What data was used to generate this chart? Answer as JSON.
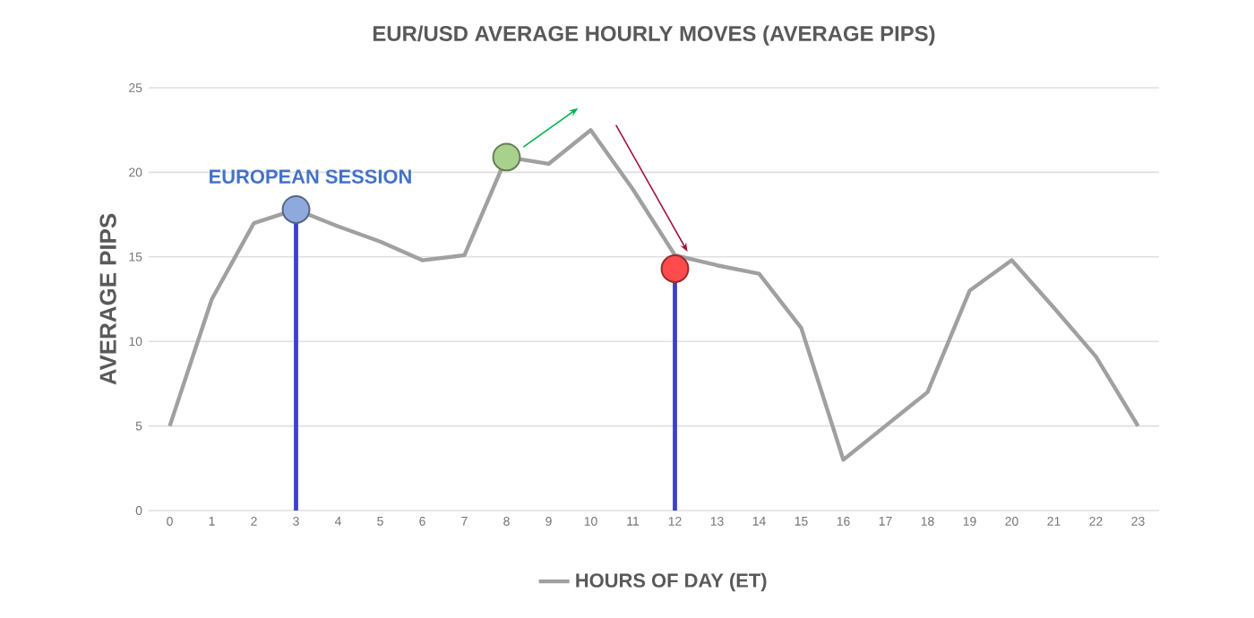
{
  "chart_data": {
    "type": "line",
    "title": "EUR/USD AVERAGE HOURLY MOVES (AVERAGE PIPS)",
    "ylabel": "AVERAGE PIPS",
    "categories": [
      "0",
      "1",
      "2",
      "3",
      "4",
      "5",
      "6",
      "7",
      "8",
      "9",
      "10",
      "11",
      "12",
      "13",
      "14",
      "15",
      "16",
      "17",
      "18",
      "19",
      "20",
      "21",
      "22",
      "23"
    ],
    "series": [
      {
        "name": "HOURS OF DAY (ET)",
        "color": "#a0a0a0",
        "values": [
          5,
          12.5,
          17,
          17.8,
          16.8,
          15.9,
          14.8,
          15.1,
          20.9,
          20.5,
          22.5,
          19,
          15.1,
          14.5,
          14,
          10.8,
          3,
          5,
          7,
          13,
          14.8,
          12,
          9.1,
          5
        ]
      },
      {
        "type": "lollipop",
        "color": "#3a3fd0",
        "colors": [
          null,
          null,
          null,
          "#8ea9db",
          null,
          null,
          null,
          null,
          null,
          null,
          null,
          null,
          "#ff4b4b",
          null,
          null,
          null,
          null,
          null,
          null,
          null,
          null,
          null,
          null,
          null
        ],
        "values": [
          null,
          null,
          null,
          17.8,
          null,
          null,
          null,
          null,
          null,
          null,
          null,
          null,
          14.3,
          null,
          null,
          null,
          null,
          null,
          null,
          null,
          null,
          null,
          null,
          null
        ]
      },
      {
        "type": "scatter",
        "values": [
          null,
          null,
          null,
          null,
          null,
          null,
          null,
          null,
          20.9,
          null,
          null,
          null,
          null,
          null,
          null,
          null,
          null,
          null,
          null,
          null,
          null,
          null,
          null,
          null
        ],
        "color": "#a9d18e"
      }
    ],
    "ylim": [
      0,
      25
    ],
    "yticks": [
      0,
      5,
      10,
      15,
      20,
      25
    ],
    "grid": "y",
    "legend": "bottom",
    "annotations": [
      "EUROPEAN SESSION"
    ]
  }
}
